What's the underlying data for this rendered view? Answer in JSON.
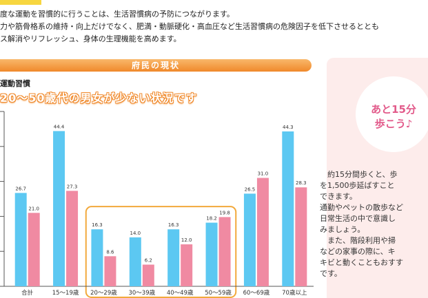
{
  "intro": {
    "line1": "度な運動を習慣的に行うことは、生活習慣病の予防につながります。",
    "line2": "力や筋骨格系の維持・向上だけでなく、肥満・動脈硬化・高血圧など生活習慣病の危険因子を低下させるととも",
    "line3": "ス解消やリフレッシュ、身体の生理機能を高めます。"
  },
  "banner": "府民の現状",
  "section_label": "運動習慣",
  "subtitle": "20〜50歳代の男女が少ない状況です",
  "colors": {
    "male": "#5cc8f2",
    "female": "#f08aa2",
    "highlight": "#f2a93b",
    "accent": "#e25a8a"
  },
  "chart_data": {
    "type": "bar",
    "categories": [
      "合計",
      "15〜19歳",
      "20〜29歳",
      "30〜39歳",
      "40〜49歳",
      "50〜59歳",
      "60〜69歳",
      "70歳以上"
    ],
    "series": [
      {
        "values": [
          26.7,
          44.4,
          16.3,
          14.0,
          16.3,
          18.2,
          26.5,
          44.3
        ]
      },
      {
        "values": [
          21.0,
          27.3,
          8.6,
          6.2,
          12.0,
          19.8,
          31.0,
          28.3
        ]
      }
    ],
    "ylim": [
      0,
      50
    ],
    "highlight_categories": [
      "20〜29歳",
      "30〜39歳",
      "40〜49歳",
      "50〜59歳"
    ]
  },
  "side": {
    "circle_line1": "あと15分",
    "circle_line2": "歩こう♪",
    "lines": [
      "　約15分間歩くと、歩",
      "を1,500歩延ばすこと",
      "できます。",
      "通勤やペットの散歩など",
      "日常生活の中で意識し",
      "みましょう。",
      "　また、階段利用や掃",
      "などの家事の際に、キ",
      "キビと動くこともおすす",
      "です。"
    ]
  }
}
